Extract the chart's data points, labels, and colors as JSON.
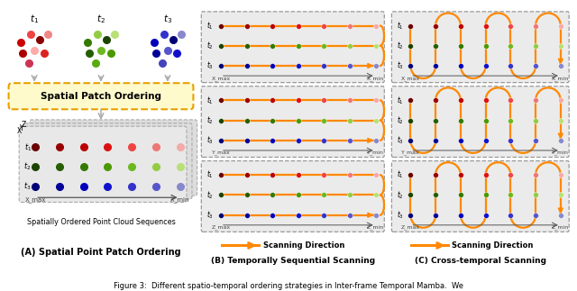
{
  "fig_width": 6.4,
  "fig_height": 3.23,
  "bg_color": "#ffffff",
  "panel_A_title": "(A) Spatial Point Patch Ordering",
  "panel_B_title": "(B) Temporally Sequential Scanning",
  "panel_C_title": "(C) Cross-temporal Scanning",
  "caption": "Figure 3:  Different spatio-temporal ordering strategies in Inter-frame Temporal Mamba.  We",
  "dot_colors_t1": [
    "#6b0000",
    "#990000",
    "#bb0000",
    "#dd1111",
    "#ee4444",
    "#ee7777",
    "#f5aaaa"
  ],
  "dot_colors_t2": [
    "#1a4400",
    "#265e00",
    "#347a00",
    "#4a9900",
    "#6db820",
    "#92cc44",
    "#b8e077"
  ],
  "dot_colors_t3": [
    "#000077",
    "#000099",
    "#0000bb",
    "#1111cc",
    "#3333cc",
    "#5555cc",
    "#8888cc"
  ],
  "scatter_t1_colors": [
    "#cc0000",
    "#ee4444",
    "#880000",
    "#ee8888",
    "#aa0000",
    "#ffaaaa",
    "#dd2222",
    "#cc3355"
  ],
  "scatter_t2_colors": [
    "#347a00",
    "#92cc44",
    "#1a4400",
    "#b8e077",
    "#265e00",
    "#6db820",
    "#4a9900",
    "#5aaa10"
  ],
  "scatter_t3_colors": [
    "#0000bb",
    "#3333cc",
    "#000077",
    "#8888cc",
    "#000099",
    "#5555cc",
    "#1111cc",
    "#4444bb"
  ],
  "arrow_color": "#aaaaaa",
  "box_fill": "#fffacc",
  "box_edge": "#e8a000",
  "scan_line_color": "#ff8800",
  "dashed_box_color": "#999999",
  "legend_label": "Scanning Direction"
}
